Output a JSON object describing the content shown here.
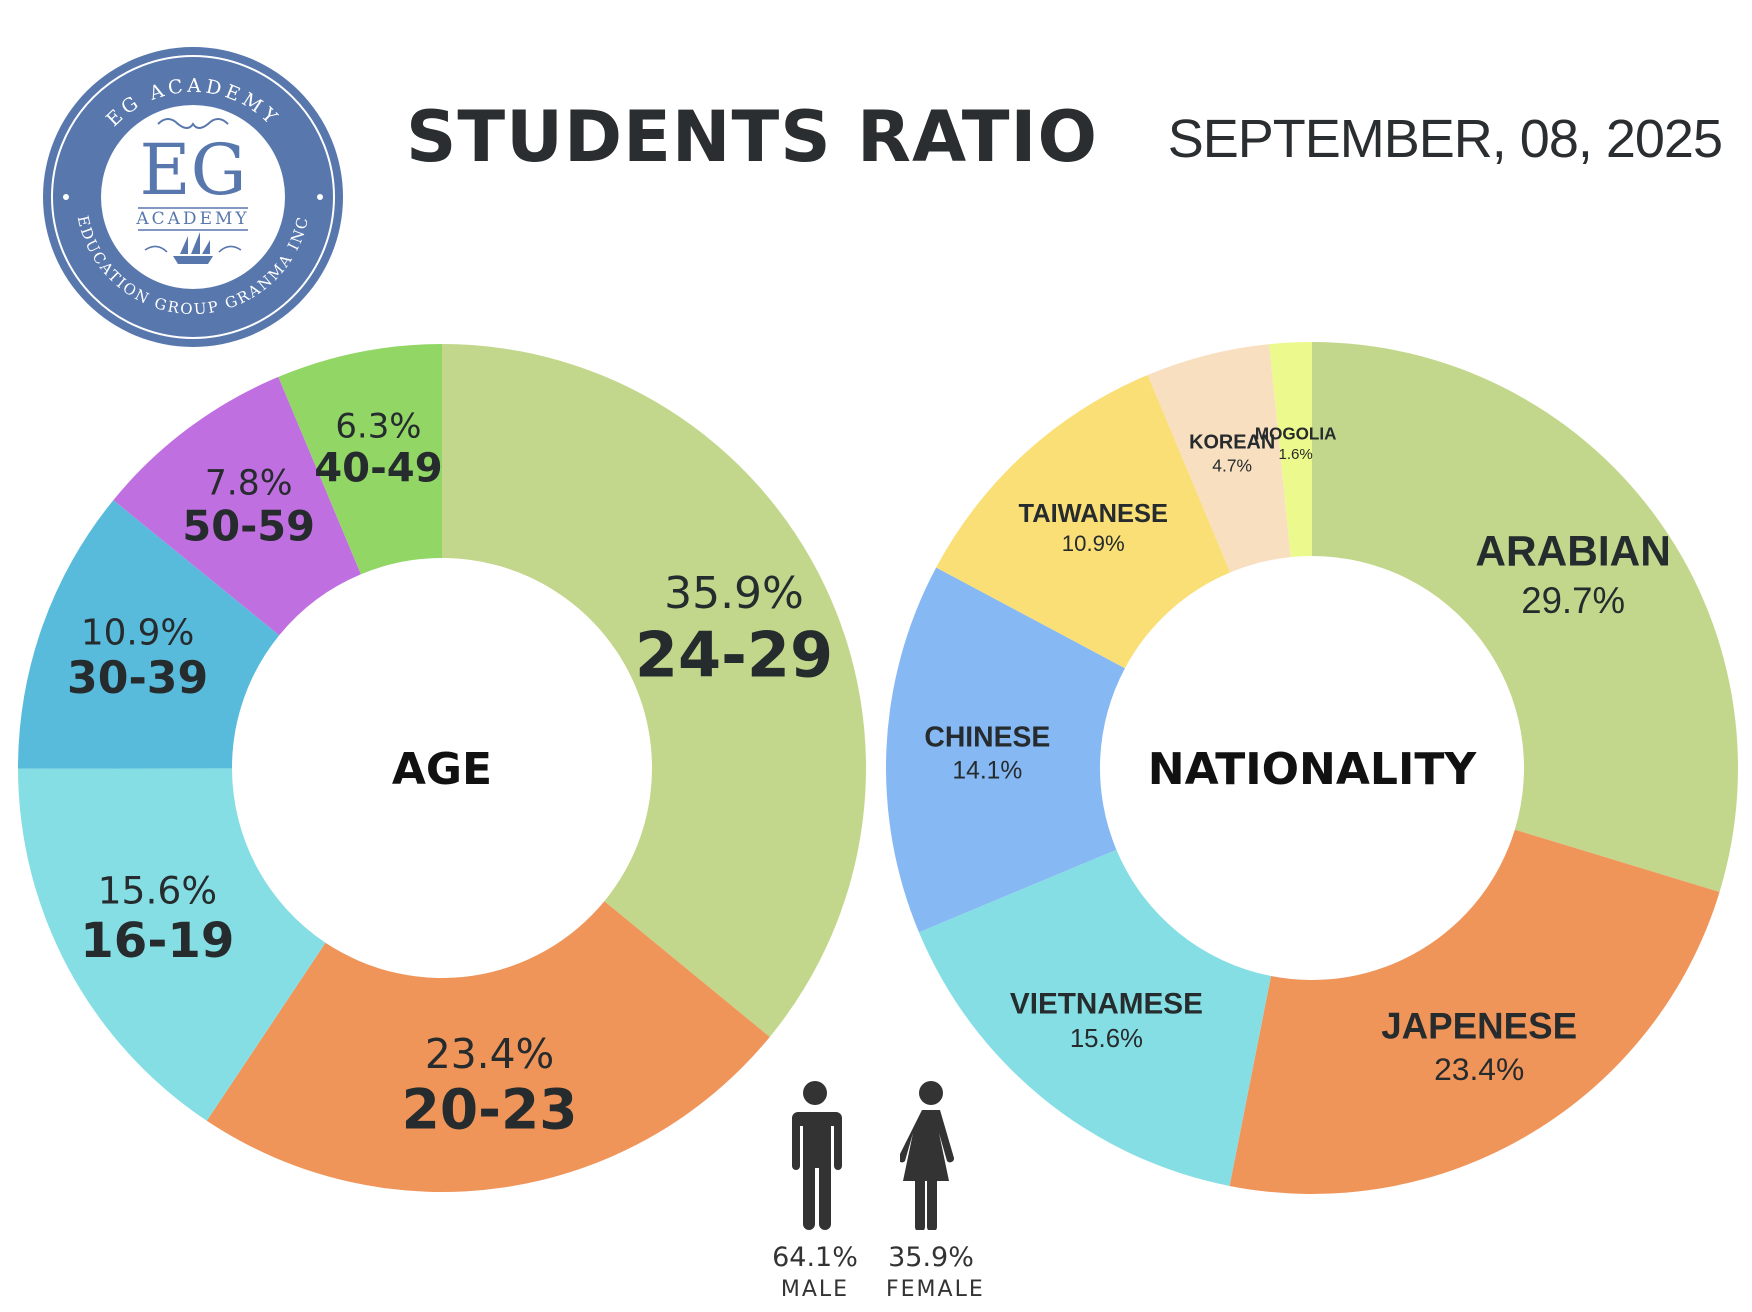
{
  "title": "STUDENTS RATIO",
  "date": "SEPTEMBER, 08, 2025",
  "logo": {
    "top_text": "EG ACADEMY",
    "monogram": "EG",
    "subtitle": "ACADEMY",
    "bottom_text": "EDUCATION GROUP GRANMA INC",
    "color": "#5877ad"
  },
  "chart_data": [
    {
      "type": "pie",
      "variant": "donut",
      "center_label": "AGE",
      "legend": "none",
      "slices": [
        {
          "label": "24-29",
          "value": 35.9,
          "pct_text": "35.9%",
          "color": "#c2d78b"
        },
        {
          "label": "20-23",
          "value": 23.4,
          "pct_text": "23.4%",
          "color": "#f0955a"
        },
        {
          "label": "16-19",
          "value": 15.6,
          "pct_text": "15.6%",
          "color": "#86dee5"
        },
        {
          "label": "30-39",
          "value": 10.9,
          "pct_text": "10.9%",
          "color": "#59bbdc"
        },
        {
          "label": "50-59",
          "value": 7.8,
          "pct_text": "7.8%",
          "color": "#c06fe0"
        },
        {
          "label": "40-49",
          "value": 6.3,
          "pct_text": "6.3%",
          "color": "#92d766"
        }
      ]
    },
    {
      "type": "pie",
      "variant": "donut",
      "center_label": "NATIONALITY",
      "legend": "none",
      "slices": [
        {
          "label": "ARABIAN",
          "value": 29.7,
          "pct_text": "29.7%",
          "color": "#c2d78b"
        },
        {
          "label": "JAPENESE",
          "value": 23.4,
          "pct_text": "23.4%",
          "color": "#f0955a"
        },
        {
          "label": "VIETNAMESE",
          "value": 15.6,
          "pct_text": "15.6%",
          "color": "#86dee5"
        },
        {
          "label": "CHINESE",
          "value": 14.1,
          "pct_text": "14.1%",
          "color": "#86b8f3"
        },
        {
          "label": "TAIWANESE",
          "value": 10.9,
          "pct_text": "10.9%",
          "color": "#f9df76"
        },
        {
          "label": "KOREAN",
          "value": 4.7,
          "pct_text": "4.7%",
          "color": "#f8dfc0"
        },
        {
          "label": "MOGOLIA",
          "value": 1.6,
          "pct_text": "1.6%",
          "color": "#ecf98c"
        }
      ]
    }
  ],
  "gender": [
    {
      "label": "MALE",
      "pct_text": "64.1%",
      "icon": "male-person-icon",
      "color": "#333333"
    },
    {
      "label": "FEMALE",
      "pct_text": "35.9%",
      "icon": "female-person-icon",
      "color": "#333333"
    }
  ]
}
